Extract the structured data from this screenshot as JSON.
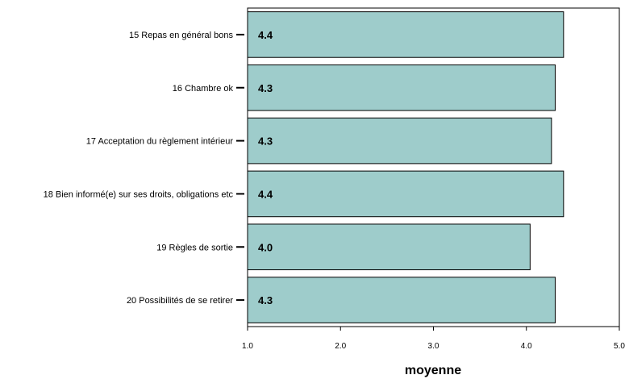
{
  "chart_data": {
    "type": "bar",
    "orientation": "horizontal",
    "categories": [
      "15 Repas en général bons",
      "16 Chambre ok",
      "17 Acceptation du règlement intérieur",
      "18 Bien informé(e) sur ses droits, obligations etc",
      "19 Règles de sortie",
      "20 Possibilités de se retirer"
    ],
    "values": [
      4.4,
      4.31,
      4.27,
      4.4,
      4.04,
      4.31
    ],
    "value_labels": [
      "4.4",
      "4.3",
      "4.3",
      "4.4",
      "4.0",
      "4.3"
    ],
    "xlim": [
      1.0,
      5.0
    ],
    "xticks": [
      "1.0",
      "2.0",
      "3.0",
      "4.0",
      "5.0"
    ],
    "xlabel": "moyenne",
    "ylabel": "",
    "title": "",
    "grid": false,
    "legend": "none",
    "colors": {
      "bar_fill": "#9ecccb",
      "bar_stroke": "#000000"
    }
  }
}
